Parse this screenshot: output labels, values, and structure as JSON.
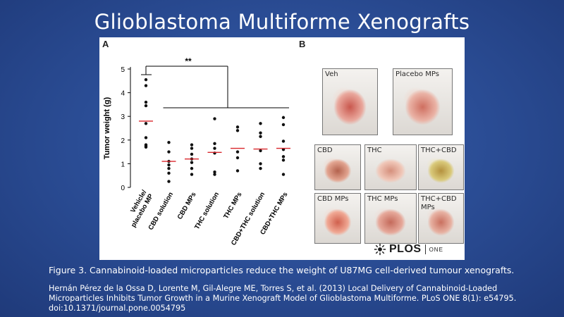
{
  "slide": {
    "title": "Glioblastoma Multiforme Xenografts",
    "caption": "Figure 3. Cannabinoid-loaded microparticles reduce the weight of U87MG cell-derived tumour xenografts.",
    "citation": "Hernán Pérez de la Ossa D, Lorente M, Gil-Alegre ME, Torres S, et al. (2013) Local Delivery of Cannabinoid-Loaded Microparticles Inhibits Tumor Growth in a Murine Xenograft Model of Glioblastoma Multiforme. PLoS ONE 8(1): e54795. doi:10.1371/journal.pone.0054795"
  },
  "figure": {
    "panel_a_label": "A",
    "panel_b_label": "B",
    "significance": "**",
    "logo": {
      "brand": "PLOS",
      "journal": "ONE"
    },
    "photos": [
      {
        "label": "Veh",
        "colors": [
          "#e9a79c",
          "#c9584e",
          "#f3d6cc"
        ]
      },
      {
        "label": "Placebo MPs",
        "colors": [
          "#eab3a6",
          "#cf6f60",
          "#f1d2c7"
        ]
      },
      {
        "label": "CBD",
        "colors": [
          "#e2a490",
          "#b3624d",
          "#f0cfc3"
        ]
      },
      {
        "label": "THC",
        "colors": [
          "#f0c7b8",
          "#d58f7c",
          "#e7e9e4"
        ]
      },
      {
        "label": "THC+CBD",
        "colors": [
          "#d9c97a",
          "#b4913e",
          "#efe6b9"
        ]
      },
      {
        "label": "CBD MPs",
        "colors": [
          "#f0a894",
          "#d0604d",
          "#f3d8ce"
        ]
      },
      {
        "label": "THC MPs",
        "colors": [
          "#e6a89a",
          "#c46a5b",
          "#f0d7d0"
        ]
      },
      {
        "label": "THC+CBD\nMPs",
        "colors": [
          "#e7b1a2",
          "#c9705f",
          "#f0d5cc"
        ]
      }
    ]
  },
  "chart_data": {
    "type": "scatter",
    "title": "",
    "xlabel": "",
    "ylabel": "Tumor weight (g)",
    "ylim": [
      0,
      5
    ],
    "yticks": [
      0,
      1,
      2,
      3,
      4,
      5
    ],
    "grid": false,
    "categories": [
      "Vehicle/ placebo MP",
      "CBD solution",
      "CBD MPs",
      "THC solution",
      "THC MPs",
      "CBD+THC solution",
      "CBD+THC MPs"
    ],
    "series": [
      {
        "points": [
          4.55,
          4.3,
          3.6,
          3.45,
          2.7,
          2.1,
          1.8,
          1.75,
          1.7
        ]
      },
      {
        "points": [
          1.9,
          1.5,
          1.1,
          0.95,
          0.8,
          0.6,
          0.25
        ]
      },
      {
        "points": [
          1.8,
          1.65,
          1.4,
          1.2,
          1.05,
          0.8,
          0.55
        ]
      },
      {
        "points": [
          2.9,
          1.85,
          1.65,
          1.45,
          0.65,
          0.55
        ]
      },
      {
        "points": [
          2.55,
          2.4,
          1.5,
          1.25,
          0.7
        ]
      },
      {
        "points": [
          2.7,
          2.3,
          2.15,
          1.55,
          1.0,
          0.8
        ]
      },
      {
        "points": [
          2.95,
          2.65,
          1.95,
          1.6,
          1.3,
          1.15,
          0.55
        ]
      }
    ],
    "means": [
      2.8,
      1.1,
      1.2,
      1.48,
      1.65,
      1.62,
      1.65
    ],
    "mean_color": "#d9262c",
    "point_color": "#111111"
  }
}
